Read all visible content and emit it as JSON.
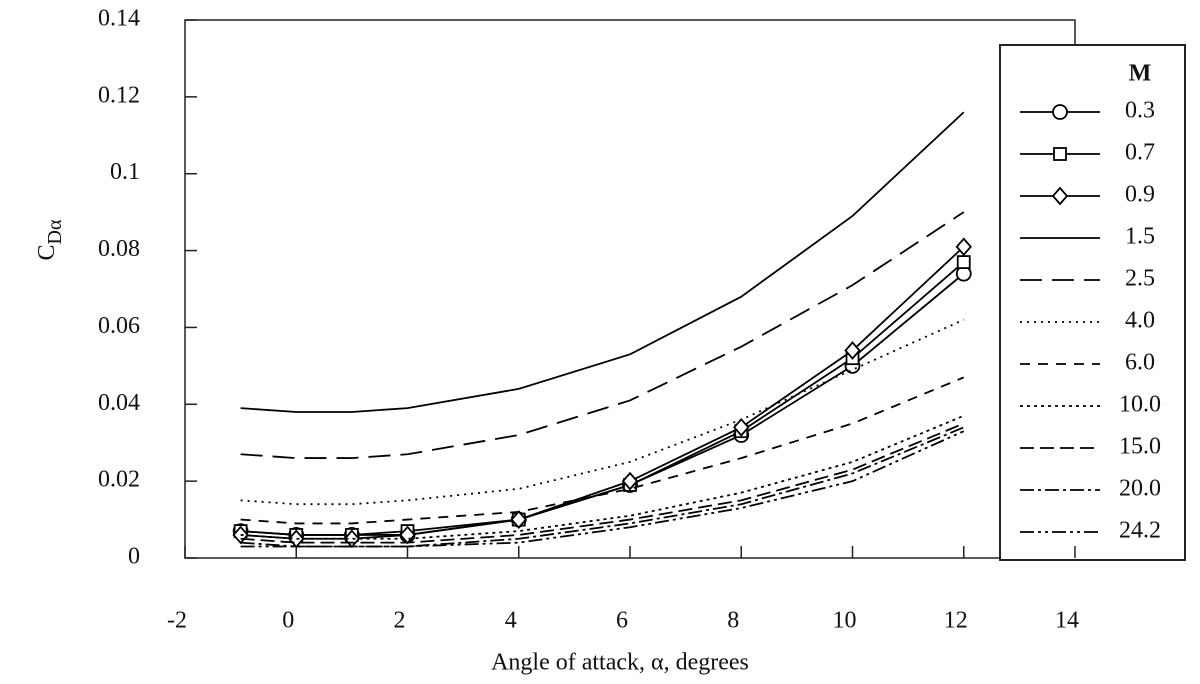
{
  "chart_data": {
    "type": "line",
    "xlabel": "Angle of attack, α, degrees",
    "ylabel": {
      "main": "C",
      "sub": "Dα"
    },
    "legend_title": "M",
    "legend": "right",
    "x": [
      -1,
      0,
      1,
      2,
      4,
      6,
      8,
      10,
      12
    ],
    "xlim": [
      -2,
      14
    ],
    "xticks": [
      -2,
      0,
      2,
      4,
      6,
      8,
      10,
      12,
      14
    ],
    "ylim": [
      0,
      0.14
    ],
    "yticks": [
      0,
      0.02,
      0.04,
      0.06,
      0.08,
      0.1,
      0.12,
      0.14
    ],
    "series": [
      {
        "name": "0.3",
        "color": "#000000",
        "dash": "none",
        "marker": "circle",
        "values": [
          0.007,
          0.006,
          0.006,
          0.006,
          0.01,
          0.019,
          0.032,
          0.05,
          0.074
        ]
      },
      {
        "name": "0.7",
        "color": "#000000",
        "dash": "none",
        "marker": "square",
        "values": [
          0.007,
          0.006,
          0.006,
          0.007,
          0.01,
          0.019,
          0.033,
          0.052,
          0.077
        ]
      },
      {
        "name": "0.9",
        "color": "#000000",
        "dash": "none",
        "marker": "diamond",
        "values": [
          0.006,
          0.005,
          0.005,
          0.006,
          0.01,
          0.02,
          0.034,
          0.054,
          0.081
        ]
      },
      {
        "name": "1.5",
        "color": "#000000",
        "dash": "none",
        "marker": null,
        "values": [
          0.039,
          0.038,
          0.038,
          0.039,
          0.044,
          0.053,
          0.068,
          0.089,
          0.116
        ]
      },
      {
        "name": "2.5",
        "color": "#000000",
        "dash": "22 10",
        "marker": null,
        "values": [
          0.027,
          0.026,
          0.026,
          0.027,
          0.032,
          0.041,
          0.055,
          0.071,
          0.09
        ]
      },
      {
        "name": "4.0",
        "color": "#000000",
        "dash": "2 5",
        "marker": null,
        "values": [
          0.015,
          0.014,
          0.014,
          0.015,
          0.018,
          0.025,
          0.036,
          0.049,
          0.062
        ]
      },
      {
        "name": "6.0",
        "color": "#000000",
        "dash": "10 8",
        "marker": null,
        "values": [
          0.01,
          0.009,
          0.009,
          0.01,
          0.012,
          0.018,
          0.026,
          0.035,
          0.047
        ]
      },
      {
        "name": "10.0",
        "color": "#000000",
        "dash": "3 4",
        "marker": null,
        "values": [
          0.006,
          0.005,
          0.005,
          0.005,
          0.007,
          0.011,
          0.017,
          0.025,
          0.037
        ]
      },
      {
        "name": "15.0",
        "color": "#000000",
        "dash": "14 6",
        "marker": null,
        "values": [
          0.005,
          0.004,
          0.004,
          0.004,
          0.006,
          0.01,
          0.015,
          0.023,
          0.035
        ]
      },
      {
        "name": "20.0",
        "color": "#000000",
        "dash": "14 4 3 4",
        "marker": null,
        "values": [
          0.004,
          0.003,
          0.003,
          0.003,
          0.005,
          0.009,
          0.014,
          0.022,
          0.034
        ]
      },
      {
        "name": "24.2",
        "color": "#000000",
        "dash": "14 4 3 4 3 4",
        "marker": null,
        "values": [
          0.003,
          0.003,
          0.003,
          0.003,
          0.004,
          0.008,
          0.013,
          0.02,
          0.033
        ]
      }
    ]
  }
}
